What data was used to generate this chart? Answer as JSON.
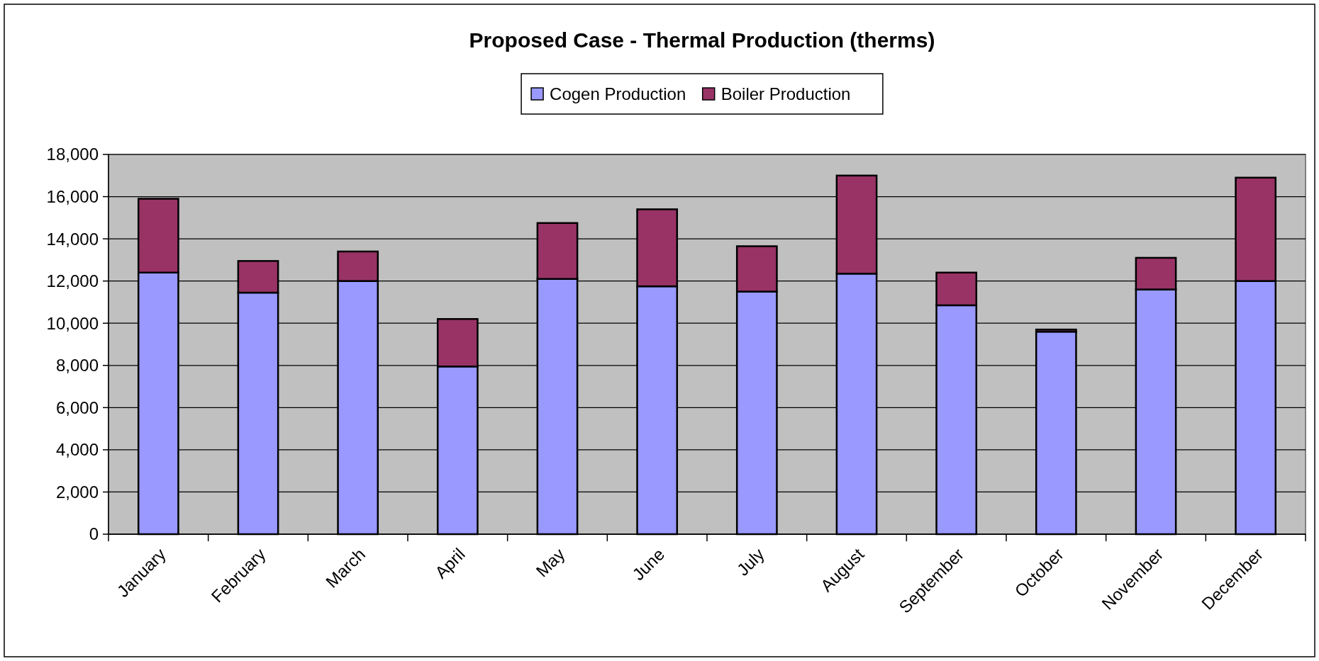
{
  "chart_data": {
    "type": "bar",
    "title": "Proposed Case - Thermal Production (therms)",
    "categories": [
      "January",
      "February",
      "March",
      "April",
      "May",
      "June",
      "July",
      "August",
      "September",
      "October",
      "November",
      "December"
    ],
    "stacked": true,
    "series": [
      {
        "name": "Cogen Production",
        "color": "#9999ff",
        "values": [
          12400,
          11450,
          12000,
          7950,
          12100,
          11750,
          11500,
          12350,
          10850,
          9600,
          11600,
          12000
        ]
      },
      {
        "name": "Boiler Production",
        "color": "#993366",
        "values": [
          3500,
          1500,
          1400,
          2250,
          2650,
          3650,
          2150,
          4650,
          1550,
          100,
          1500,
          4900
        ]
      }
    ],
    "ylim": [
      0,
      18000
    ],
    "yticks": [
      {
        "value": 0,
        "label": "0"
      },
      {
        "value": 2000,
        "label": "2,000"
      },
      {
        "value": 4000,
        "label": "4,000"
      },
      {
        "value": 6000,
        "label": "6,000"
      },
      {
        "value": 8000,
        "label": "8,000"
      },
      {
        "value": 10000,
        "label": "10,000"
      },
      {
        "value": 12000,
        "label": "12,000"
      },
      {
        "value": 14000,
        "label": "14,000"
      },
      {
        "value": 16000,
        "label": "16,000"
      },
      {
        "value": 18000,
        "label": "18,000"
      }
    ],
    "grid": "y",
    "legend": "top"
  }
}
